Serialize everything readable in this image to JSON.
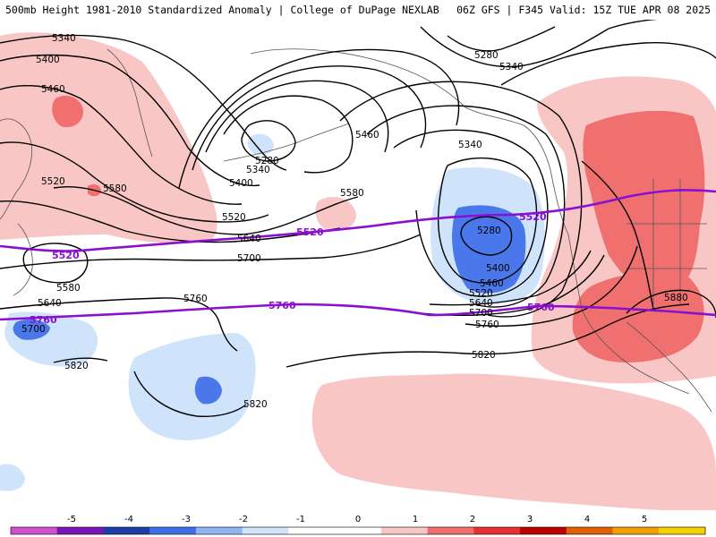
{
  "header": {
    "left": "500mb Height 1981-2010 Standardized Anomaly | College of DuPage NEXLAB",
    "right": "06Z GFS | F345 Valid: 15Z TUE APR 08 2025"
  },
  "colors": {
    "background": "#ffffff",
    "contour": "#000000",
    "line_5520_5760": "#8a0fd0",
    "pos1": "#f9c6c6",
    "pos2": "#f07070",
    "neg1": "#cfe4fb",
    "neg2": "#4a78ea",
    "coast": "#555555"
  },
  "contour_labels": [
    {
      "text": "5340"
    },
    {
      "text": "5400"
    },
    {
      "text": "5460"
    },
    {
      "text": "5520"
    },
    {
      "text": "5580"
    },
    {
      "text": "5640"
    },
    {
      "text": "5580"
    },
    {
      "text": "5280"
    },
    {
      "text": "5340"
    },
    {
      "text": "5400"
    },
    {
      "text": "5460"
    },
    {
      "text": "5520"
    },
    {
      "text": "5580"
    },
    {
      "text": "5640"
    },
    {
      "text": "5700"
    },
    {
      "text": "5280"
    },
    {
      "text": "5340"
    },
    {
      "text": "5400"
    },
    {
      "text": "5460"
    },
    {
      "text": "5520"
    },
    {
      "text": "5640"
    },
    {
      "text": "5700"
    },
    {
      "text": "5760"
    },
    {
      "text": "5280"
    },
    {
      "text": "5340"
    },
    {
      "text": "5880"
    },
    {
      "text": "5760"
    },
    {
      "text": "5820"
    },
    {
      "text": "5820"
    },
    {
      "text": "5820"
    },
    {
      "text": "5700"
    }
  ],
  "purple_labels": [
    {
      "text": "5520"
    },
    {
      "text": "5520"
    },
    {
      "text": "5520"
    },
    {
      "text": "5760"
    },
    {
      "text": "5760"
    },
    {
      "text": "5760"
    }
  ],
  "legend": {
    "ticks": [
      "-5",
      "-4",
      "-3",
      "-2",
      "-1",
      "0",
      "1",
      "2",
      "3",
      "4",
      "5"
    ],
    "colors": [
      "#d050d0",
      "#7a16b8",
      "#1c3fa6",
      "#3d6fe6",
      "#8fb6f2",
      "#cfe4fb",
      "#ffffff",
      "#ffffff",
      "#f9c6c6",
      "#f07070",
      "#e83030",
      "#c00000",
      "#e06000",
      "#f2a000",
      "#f7d000"
    ]
  }
}
